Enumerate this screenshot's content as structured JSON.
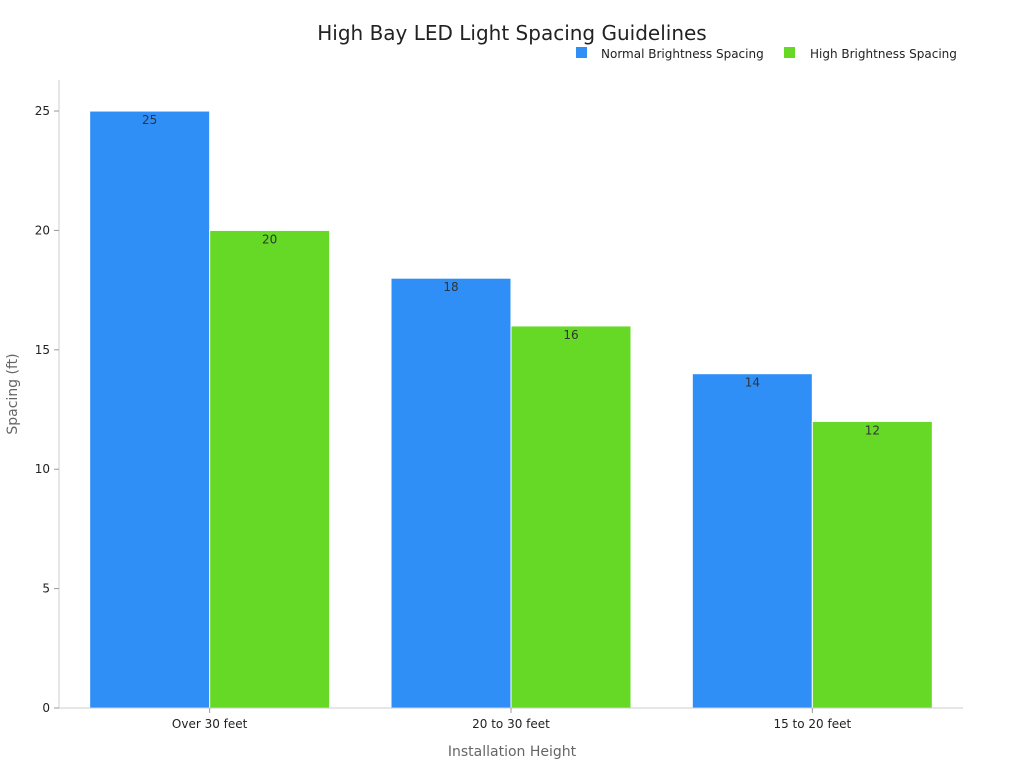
{
  "chart_data": {
    "type": "bar",
    "title": "High Bay LED Light Spacing Guidelines",
    "xlabel": "Installation Height",
    "ylabel": "Spacing (ft)",
    "categories": [
      "Over 30 feet",
      "20 to 30 feet",
      "15 to 20 feet"
    ],
    "series": [
      {
        "name": "Normal Brightness Spacing",
        "color": "#2f8ff7",
        "values": [
          25,
          18,
          14
        ]
      },
      {
        "name": "High Brightness Spacing",
        "color": "#66d926",
        "values": [
          20,
          16,
          12
        ]
      }
    ],
    "ylim": [
      0,
      26.3
    ],
    "yticks": [
      0,
      5,
      10,
      15,
      20,
      25
    ],
    "grid": false,
    "legend_position": "top-right"
  }
}
